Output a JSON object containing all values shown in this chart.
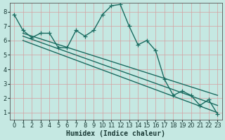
{
  "title": "",
  "xlabel": "Humidex (Indice chaleur)",
  "ylabel": "",
  "bg_color": "#c5e8e2",
  "line_color": "#1a6b60",
  "grid_color": "#d4a0a0",
  "ylim": [
    0.5,
    8.6
  ],
  "xlim": [
    -0.5,
    23.5
  ],
  "yticks": [
    1,
    2,
    3,
    4,
    5,
    6,
    7,
    8
  ],
  "xticks": [
    0,
    1,
    2,
    3,
    4,
    5,
    6,
    7,
    8,
    9,
    10,
    11,
    12,
    13,
    14,
    15,
    16,
    17,
    18,
    19,
    20,
    21,
    22,
    23
  ],
  "wavy_line": {
    "x": [
      0,
      1,
      2,
      3,
      4,
      5,
      6,
      7,
      8,
      9,
      10,
      11,
      12,
      13,
      14,
      15,
      16,
      17,
      18,
      19,
      20,
      21,
      22,
      23
    ],
    "y": [
      7.8,
      6.7,
      6.2,
      6.5,
      6.5,
      5.5,
      5.5,
      6.7,
      6.3,
      6.7,
      7.8,
      8.4,
      8.5,
      7.0,
      5.7,
      6.0,
      5.3,
      3.3,
      2.2,
      2.5,
      2.2,
      1.5,
      1.9,
      0.9
    ]
  },
  "straight_lines": [
    {
      "x": [
        1,
        23
      ],
      "y": [
        6.5,
        2.2
      ]
    },
    {
      "x": [
        1,
        23
      ],
      "y": [
        6.3,
        1.5
      ]
    },
    {
      "x": [
        1,
        23
      ],
      "y": [
        6.0,
        1.0
      ]
    }
  ],
  "marker": "+",
  "markersize": 4,
  "linewidth": 1.0,
  "fontsize_label": 7,
  "fontsize_tick": 6
}
